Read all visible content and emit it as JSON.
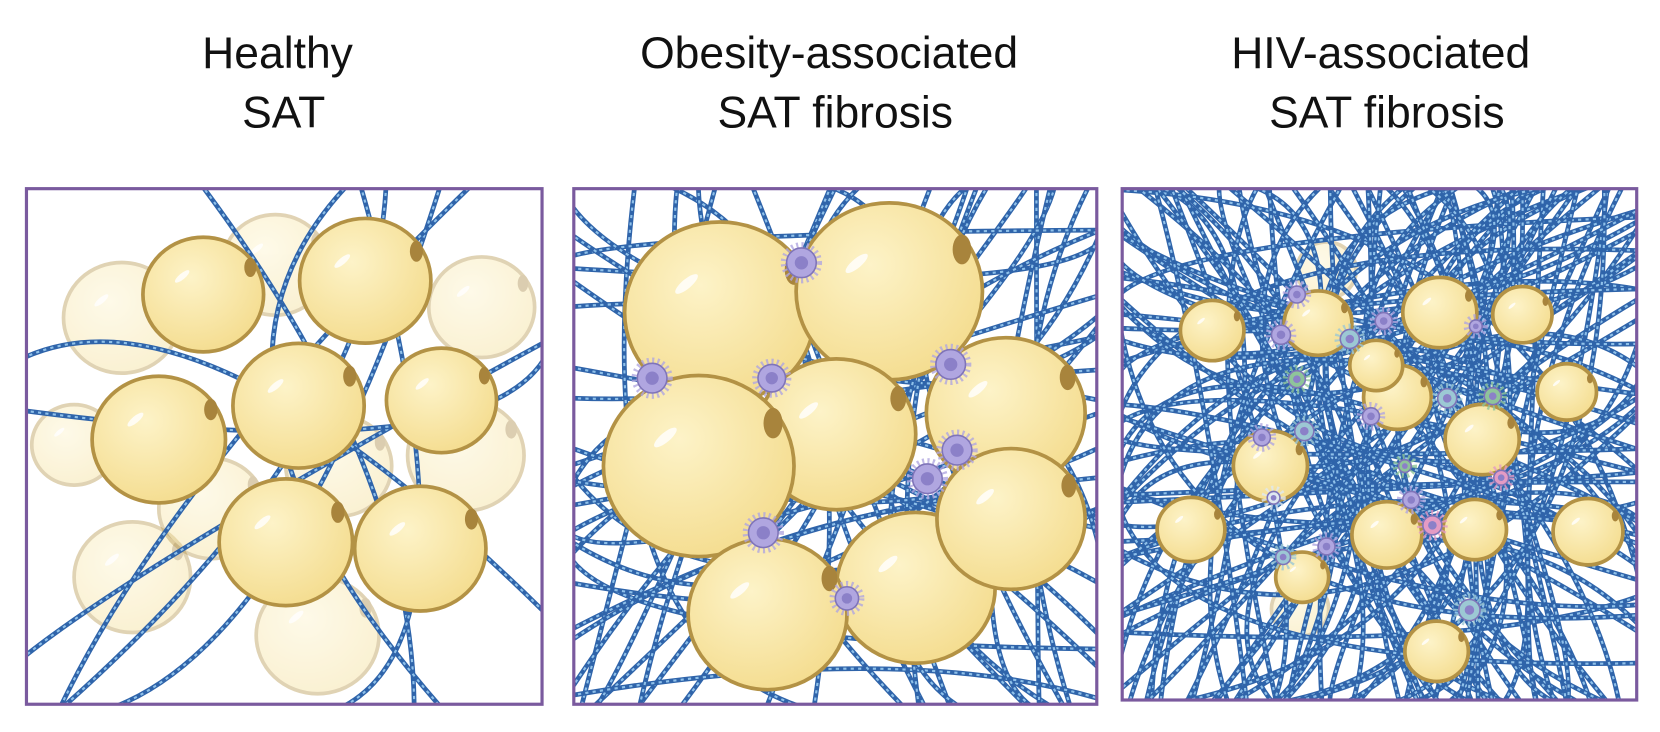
{
  "panels": [
    {
      "title": [
        "Healthy",
        "SAT"
      ]
    },
    {
      "title": [
        "Obesity-associated",
        "SAT fibrosis"
      ]
    },
    {
      "title": [
        "HIV-associated",
        "SAT fibrosis"
      ]
    }
  ]
}
